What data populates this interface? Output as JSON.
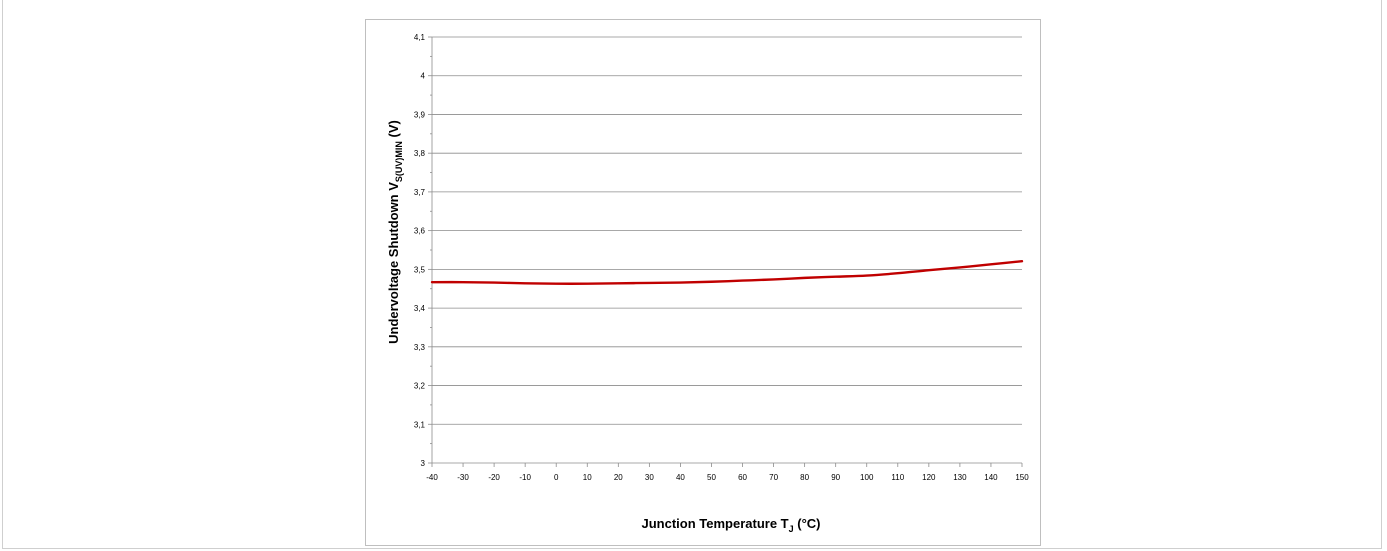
{
  "chart_data": {
    "type": "line",
    "xlabel": "Junction Temperature T",
    "xlabel_sub": "J",
    "xlabel_unit": " (°C)",
    "ylabel": "Undervoltage Shutdown  V",
    "ylabel_sub": "S(UV)MIN",
    "ylabel_unit": " (V)",
    "xlim": [
      -40,
      150
    ],
    "ylim": [
      3.0,
      4.1
    ],
    "x_ticks": [
      -40,
      -30,
      -20,
      -10,
      0,
      10,
      20,
      30,
      40,
      50,
      60,
      70,
      80,
      90,
      100,
      110,
      120,
      130,
      140,
      150
    ],
    "y_ticks": [
      3.0,
      3.1,
      3.2,
      3.3,
      3.4,
      3.5,
      3.6,
      3.7,
      3.8,
      3.9,
      4.0,
      4.1
    ],
    "y_tick_labels": [
      "3",
      "3,1",
      "3,2",
      "3,3",
      "3,4",
      "3,5",
      "3,6",
      "3,7",
      "3,8",
      "3,9",
      "4",
      "4,1"
    ],
    "grid": true,
    "series": [
      {
        "color": "#c00000",
        "x": [
          -40,
          -30,
          -20,
          -10,
          0,
          10,
          20,
          30,
          40,
          50,
          60,
          70,
          80,
          90,
          100,
          110,
          120,
          130,
          140,
          150
        ],
        "y": [
          3.467,
          3.467,
          3.466,
          3.464,
          3.463,
          3.463,
          3.464,
          3.465,
          3.466,
          3.468,
          3.471,
          3.474,
          3.478,
          3.481,
          3.484,
          3.49,
          3.498,
          3.505,
          3.513,
          3.521
        ]
      }
    ]
  }
}
